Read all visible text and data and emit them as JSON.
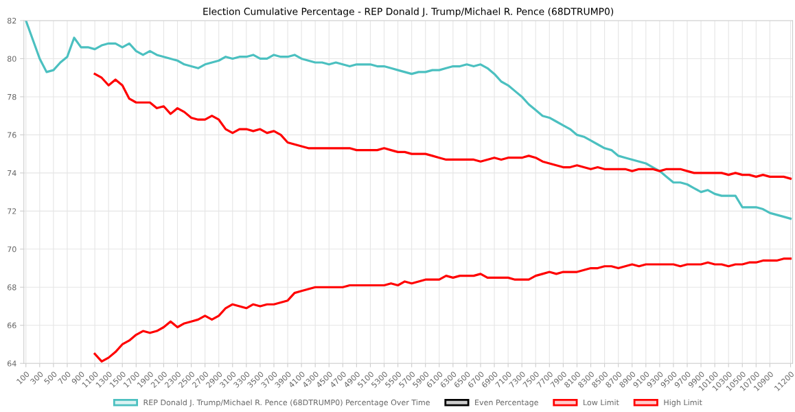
{
  "chart_data": {
    "type": "line",
    "title": "Election Cumulative Percentage - REP Donald J. Trump/Michael R. Pence (68DTRUMP0)",
    "categories": [
      "100",
      null,
      "300",
      null,
      "500",
      null,
      "700",
      null,
      "900",
      null,
      "1100",
      null,
      "1300",
      null,
      "1500",
      null,
      "1700",
      null,
      "1900",
      null,
      "2100",
      null,
      "2300",
      null,
      "2500",
      null,
      "2700",
      null,
      "2900",
      null,
      "3100",
      null,
      "3300",
      null,
      "3500",
      null,
      "3700",
      null,
      "3900",
      null,
      "4100",
      null,
      "4300",
      null,
      "4500",
      null,
      "4700",
      null,
      "4900",
      null,
      "5100",
      null,
      "5300",
      null,
      "5500",
      null,
      "5700",
      null,
      "5900",
      null,
      "6100",
      null,
      "6300",
      null,
      "6500",
      null,
      "6700",
      null,
      "6900",
      null,
      "7100",
      null,
      "7300",
      null,
      "7500",
      null,
      "7700",
      null,
      "7900",
      null,
      "8100",
      null,
      "8300",
      null,
      "8500",
      null,
      "8700",
      null,
      "8900",
      null,
      "9100",
      null,
      "9300",
      null,
      "9500",
      null,
      "9700",
      null,
      "9900",
      null,
      "10100",
      null,
      "10300",
      null,
      "10500",
      null,
      "10700",
      null,
      "10900",
      null,
      null,
      "11200"
    ],
    "series": [
      {
        "name": "REP Donald J. Trump/Michael R. Pence (68DTRUMP0) Percentage Over Time",
        "color": "#4bc0c0",
        "values": [
          82.0,
          81.0,
          80.0,
          79.3,
          79.4,
          79.8,
          80.1,
          81.1,
          80.6,
          80.6,
          80.5,
          80.7,
          80.8,
          80.8,
          80.6,
          80.8,
          80.4,
          80.2,
          80.4,
          80.2,
          80.1,
          80.0,
          79.9,
          79.7,
          79.6,
          79.5,
          79.7,
          79.8,
          79.9,
          80.1,
          80.0,
          80.1,
          80.1,
          80.2,
          80.0,
          80.0,
          80.2,
          80.1,
          80.1,
          80.2,
          80.0,
          79.9,
          79.8,
          79.8,
          79.7,
          79.8,
          79.7,
          79.6,
          79.7,
          79.7,
          79.7,
          79.6,
          79.6,
          79.5,
          79.4,
          79.3,
          79.2,
          79.3,
          79.3,
          79.4,
          79.4,
          79.5,
          79.6,
          79.6,
          79.7,
          79.6,
          79.7,
          79.5,
          79.2,
          78.8,
          78.6,
          78.3,
          78.0,
          77.6,
          77.3,
          77.0,
          76.9,
          76.7,
          76.5,
          76.3,
          76.0,
          75.9,
          75.7,
          75.5,
          75.3,
          75.2,
          74.9,
          74.8,
          74.7,
          74.6,
          74.5,
          74.3,
          74.1,
          73.8,
          73.5,
          73.5,
          73.4,
          73.2,
          73.0,
          73.1,
          72.9,
          72.8,
          72.8,
          72.8,
          72.2,
          72.2,
          72.2,
          72.1,
          71.9,
          71.8,
          71.7,
          71.6
        ]
      },
      {
        "name": "Even Percentage",
        "color": "#000000",
        "values": [
          null,
          null,
          null,
          null,
          null,
          null,
          null,
          null,
          null,
          null,
          null,
          null,
          null,
          null,
          null,
          null,
          null,
          null,
          null,
          null,
          null,
          null,
          null,
          null,
          null,
          null,
          null,
          null,
          null,
          null,
          null,
          null,
          null,
          null,
          null,
          null,
          null,
          null,
          null,
          null,
          null,
          null,
          null,
          null,
          null,
          null,
          null,
          null,
          null,
          null,
          null,
          null,
          null,
          null,
          null,
          null,
          null,
          null,
          null,
          null,
          null,
          null,
          null,
          null,
          null,
          null,
          null,
          null,
          null,
          null,
          null,
          null,
          null,
          null,
          null,
          null,
          null,
          null,
          null,
          null,
          null,
          null,
          null,
          null,
          null,
          null,
          null,
          null,
          null,
          null,
          null,
          null,
          null,
          null,
          null,
          null,
          null,
          null,
          null,
          null,
          null,
          null,
          null,
          null,
          null,
          null,
          null,
          null,
          null,
          null,
          null,
          null
        ]
      },
      {
        "name": "Low Limit",
        "color": "#ff0000",
        "values": [
          null,
          null,
          null,
          null,
          null,
          null,
          null,
          null,
          null,
          null,
          64.5,
          64.1,
          64.3,
          64.6,
          65.0,
          65.2,
          65.5,
          65.7,
          65.6,
          65.7,
          65.9,
          66.2,
          65.9,
          66.1,
          66.2,
          66.3,
          66.5,
          66.3,
          66.5,
          66.9,
          67.1,
          67.0,
          66.9,
          67.1,
          67.0,
          67.1,
          67.1,
          67.2,
          67.3,
          67.7,
          67.8,
          67.9,
          68.0,
          68.0,
          68.0,
          68.0,
          68.0,
          68.1,
          68.1,
          68.1,
          68.1,
          68.1,
          68.1,
          68.2,
          68.1,
          68.3,
          68.2,
          68.3,
          68.4,
          68.4,
          68.4,
          68.6,
          68.5,
          68.6,
          68.6,
          68.6,
          68.7,
          68.5,
          68.5,
          68.5,
          68.5,
          68.4,
          68.4,
          68.4,
          68.6,
          68.7,
          68.8,
          68.7,
          68.8,
          68.8,
          68.8,
          68.9,
          69.0,
          69.0,
          69.1,
          69.1,
          69.0,
          69.1,
          69.2,
          69.1,
          69.2,
          69.2,
          69.2,
          69.2,
          69.2,
          69.1,
          69.2,
          69.2,
          69.2,
          69.3,
          69.2,
          69.2,
          69.1,
          69.2,
          69.2,
          69.3,
          69.3,
          69.4,
          69.4,
          69.4,
          69.5,
          69.5
        ]
      },
      {
        "name": "High Limit",
        "color": "#ff0000",
        "values": [
          null,
          null,
          null,
          null,
          null,
          null,
          null,
          null,
          null,
          null,
          79.2,
          79.0,
          78.6,
          78.9,
          78.6,
          77.9,
          77.7,
          77.7,
          77.7,
          77.4,
          77.5,
          77.1,
          77.4,
          77.2,
          76.9,
          76.8,
          76.8,
          77.0,
          76.8,
          76.3,
          76.1,
          76.3,
          76.3,
          76.2,
          76.3,
          76.1,
          76.2,
          76.0,
          75.6,
          75.5,
          75.4,
          75.3,
          75.3,
          75.3,
          75.3,
          75.3,
          75.3,
          75.3,
          75.2,
          75.2,
          75.2,
          75.2,
          75.3,
          75.2,
          75.1,
          75.1,
          75.0,
          75.0,
          75.0,
          74.9,
          74.8,
          74.7,
          74.7,
          74.7,
          74.7,
          74.7,
          74.6,
          74.7,
          74.8,
          74.7,
          74.8,
          74.8,
          74.8,
          74.9,
          74.8,
          74.6,
          74.5,
          74.4,
          74.3,
          74.3,
          74.4,
          74.3,
          74.2,
          74.3,
          74.2,
          74.2,
          74.2,
          74.2,
          74.1,
          74.2,
          74.2,
          74.2,
          74.1,
          74.2,
          74.2,
          74.2,
          74.1,
          74.0,
          74.0,
          74.0,
          74.0,
          74.0,
          73.9,
          74.0,
          73.9,
          73.9,
          73.8,
          73.9,
          73.8,
          73.8,
          73.8,
          73.7
        ]
      }
    ],
    "ylim": [
      64,
      82
    ],
    "yticks": [
      64,
      66,
      68,
      70,
      72,
      74,
      76,
      78,
      80,
      82
    ],
    "grid": true,
    "legend": "bottom",
    "marker": "none",
    "line_style": "solid"
  }
}
